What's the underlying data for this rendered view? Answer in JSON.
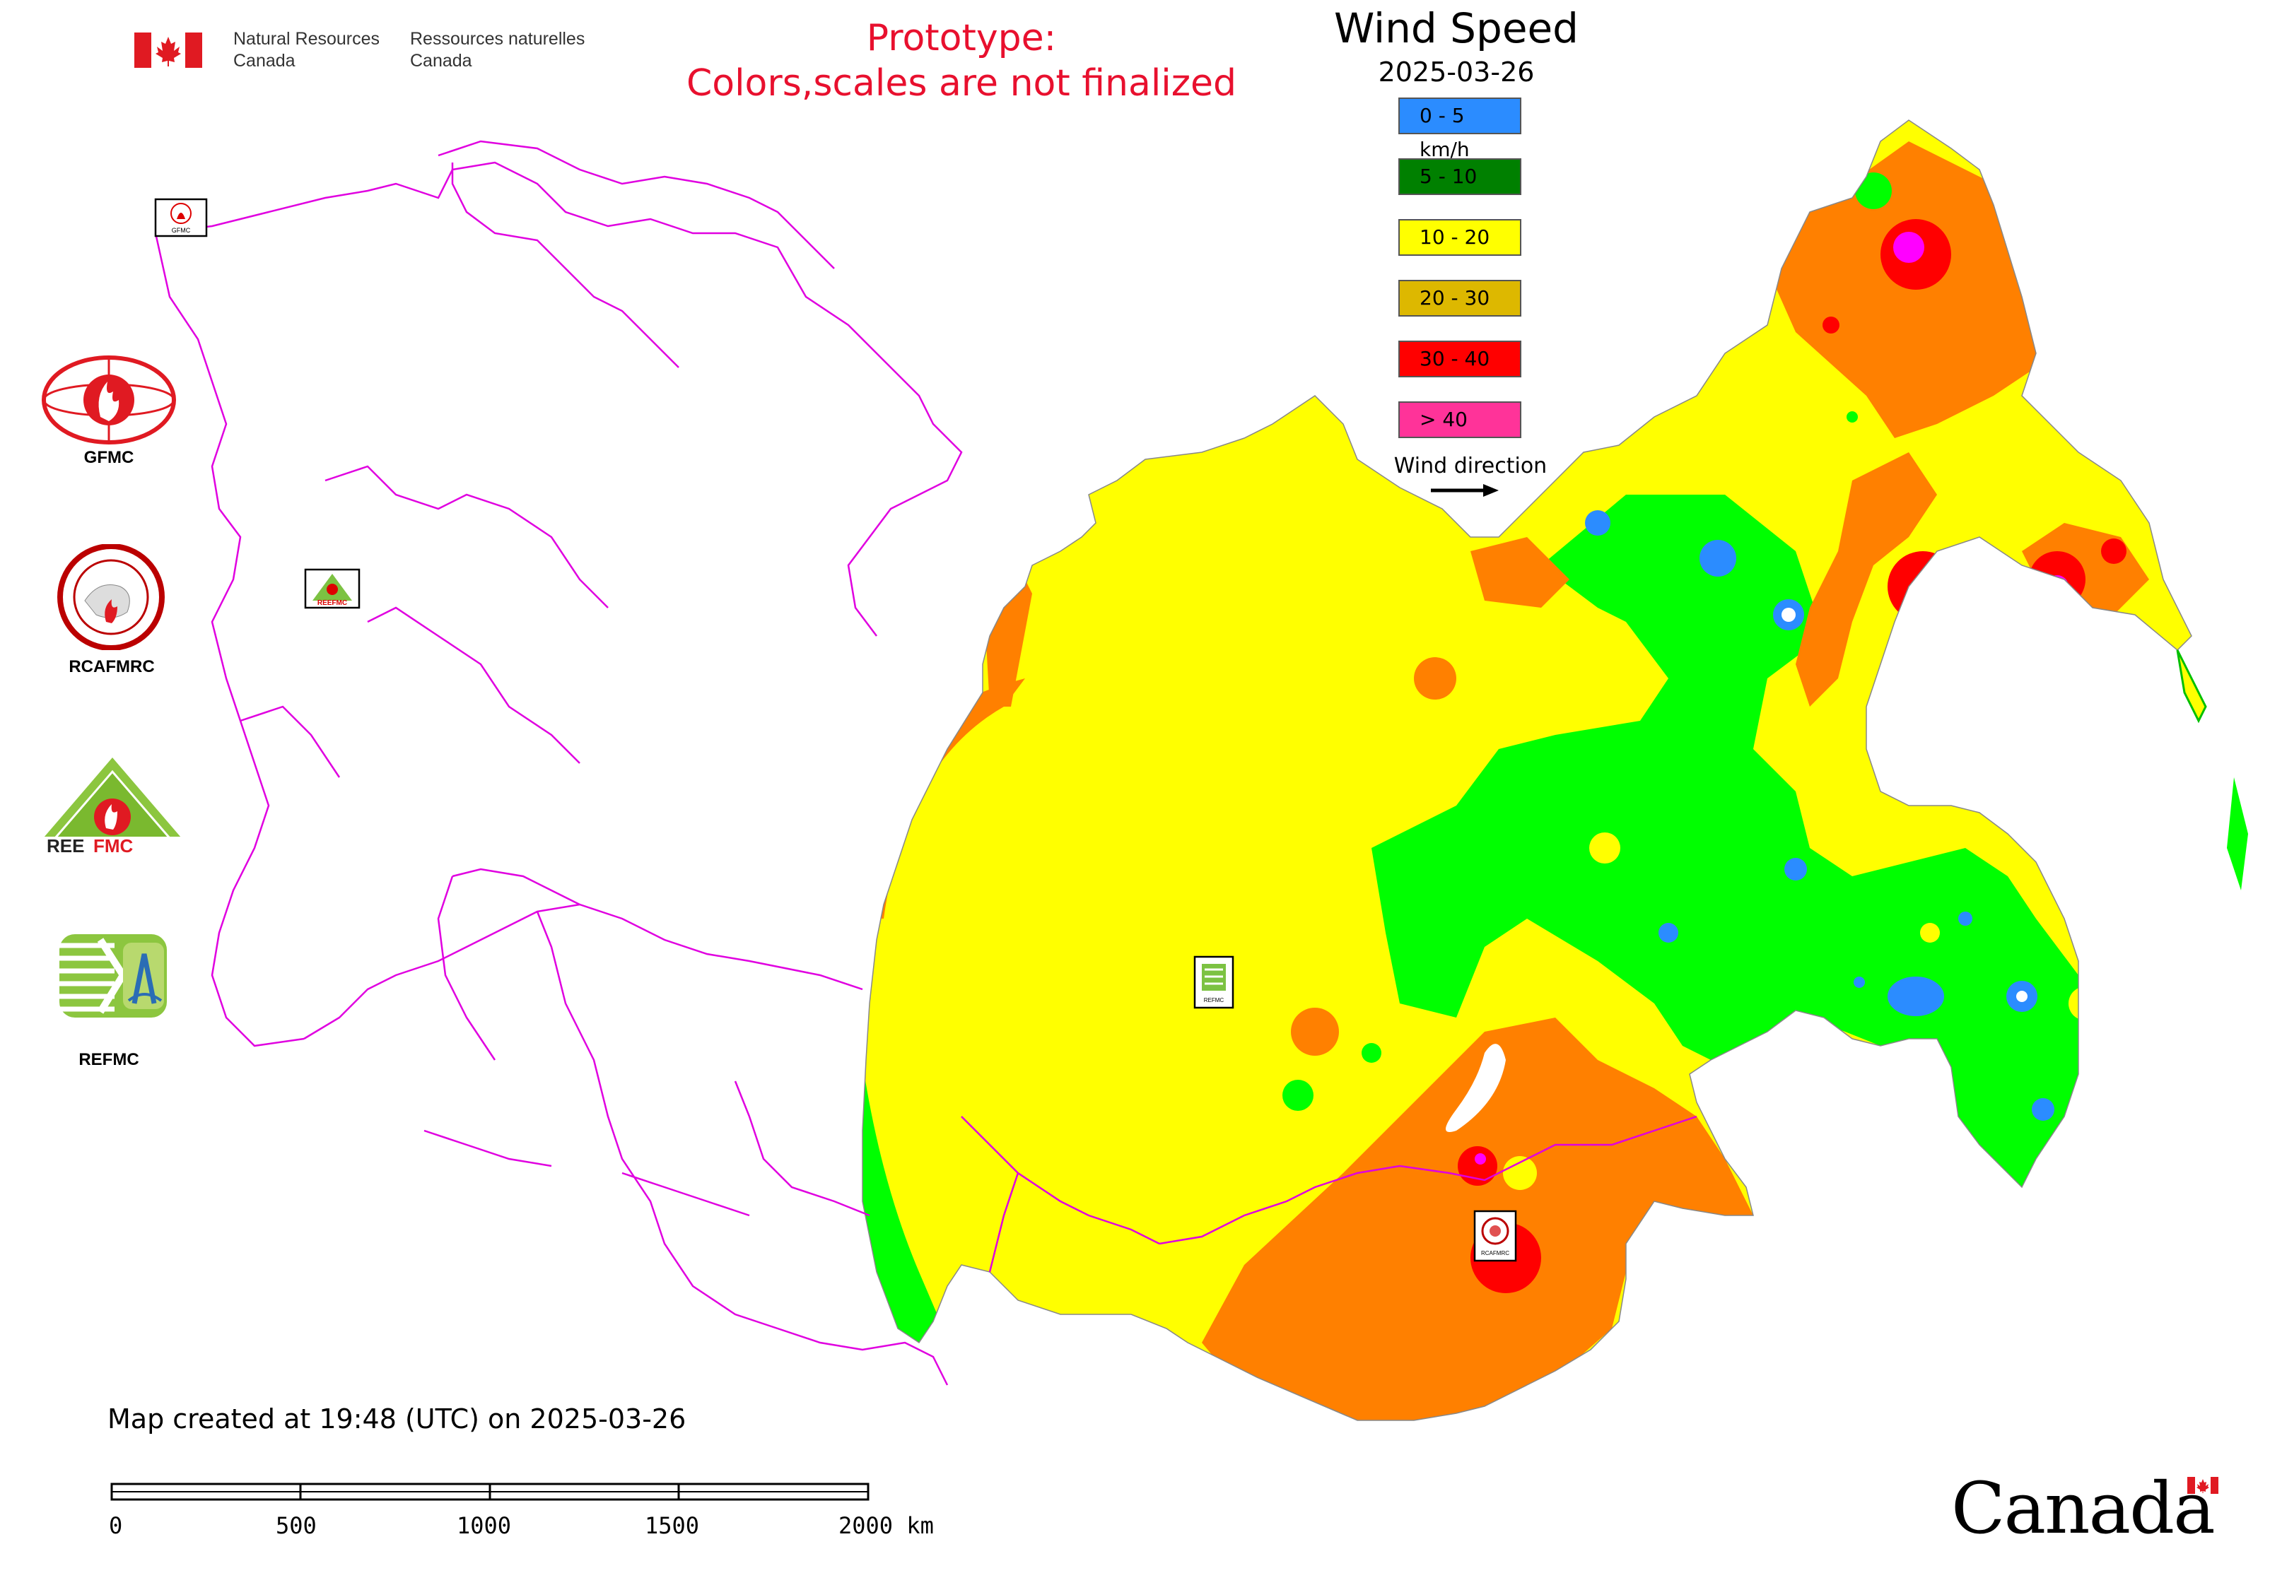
{
  "header": {
    "gov_en_line1": "Natural Resources",
    "gov_en_line2": "Canada",
    "gov_fr_line1": "Ressources naturelles",
    "gov_fr_line2": "Canada",
    "prototype_line1": "Prototype:",
    "prototype_line2": "Colors,scales are not finalized"
  },
  "legend": {
    "title": "Wind Speed",
    "date": "2025-03-26",
    "items": [
      {
        "label": "0 - 5 km/h",
        "color": "#2b8cff"
      },
      {
        "label": "5 - 10",
        "color": "#008000"
      },
      {
        "label": "10 - 20",
        "color": "#ffff00"
      },
      {
        "label": "20 - 30",
        "color": "#ddb800"
      },
      {
        "label": "30 - 40",
        "color": "#ff0000"
      },
      {
        "label": "> 40",
        "color": "#ff3399"
      }
    ],
    "wind_direction_label": "Wind direction"
  },
  "logos": [
    {
      "name": "GFMC",
      "label": "GFMC"
    },
    {
      "name": "RCAFMRC",
      "label": "RCAFMRC"
    },
    {
      "name": "REEFMC",
      "label": ""
    },
    {
      "name": "REFMC",
      "label": "REFMC"
    }
  ],
  "map_markers": [
    {
      "name": "GFMC",
      "label": "GFMC"
    },
    {
      "name": "REEFMC",
      "label": "REEFMC"
    },
    {
      "name": "REFMC",
      "label": "REFMC"
    },
    {
      "name": "RCAFMRC",
      "label": "RCAFMRC"
    }
  ],
  "colors": {
    "green": "#00ff00",
    "yellow": "#ffff00",
    "orange": "#ff8000",
    "red": "#ff0000",
    "magenta": "#ff00ff",
    "blue": "#2b8cff",
    "border_lines": "#e000e0",
    "prototype_text": "#e8102e"
  },
  "footer": {
    "created_text": "Map created at 19:48 (UTC) on 2025-03-26",
    "scale_ticks": [
      "0",
      "500",
      "1000",
      "1500",
      "2000 km"
    ],
    "wordmark": "Canada"
  }
}
